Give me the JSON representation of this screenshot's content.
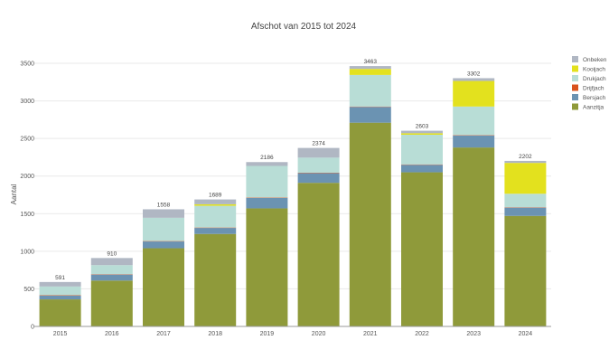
{
  "chart_data": {
    "type": "bar",
    "stacked": true,
    "title": "Afschot van 2015 tot 2024",
    "xlabel": "",
    "ylabel": "Aantal",
    "ylim": [
      0,
      3500
    ],
    "yticks": [
      0,
      500,
      1000,
      1500,
      2000,
      2500,
      3000,
      3500
    ],
    "grid": true,
    "legend_position": "right",
    "categories": [
      "2015",
      "2016",
      "2017",
      "2018",
      "2019",
      "2020",
      "2021",
      "2022",
      "2023",
      "2024"
    ],
    "totals": [
      591,
      910,
      1558,
      1689,
      2186,
      2374,
      3463,
      2603,
      3302,
      2202
    ],
    "series": [
      {
        "name": "Aanzitjacht",
        "color": "#8f9a3a",
        "values": [
          360,
          610,
          1040,
          1230,
          1570,
          1910,
          2710,
          2050,
          2380,
          1470
        ]
      },
      {
        "name": "Bersjacht",
        "color": "#6b93b2",
        "values": [
          50,
          80,
          90,
          80,
          140,
          130,
          210,
          100,
          160,
          110
        ]
      },
      {
        "name": "Drijfjacht",
        "color": "#d9531e",
        "values": [
          5,
          5,
          5,
          5,
          5,
          5,
          5,
          5,
          5,
          5
        ]
      },
      {
        "name": "Drukjacht",
        "color": "#b8ddd6",
        "values": [
          116,
          120,
          310,
          290,
          420,
          200,
          420,
          395,
          380,
          180
        ]
      },
      {
        "name": "Kooijacht",
        "color": "#e3e11e",
        "values": [
          0,
          0,
          0,
          20,
          0,
          0,
          80,
          20,
          340,
          410
        ]
      },
      {
        "name": "Onbekend",
        "color": "#b0b7c3",
        "values": [
          60,
          95,
          113,
          64,
          51,
          129,
          38,
          33,
          37,
          27
        ]
      }
    ],
    "legend_labels": [
      "Onbeken",
      "Kooijach",
      "Drukjach",
      "Drijfjach",
      "Bersjach",
      "Aanzitja"
    ]
  }
}
